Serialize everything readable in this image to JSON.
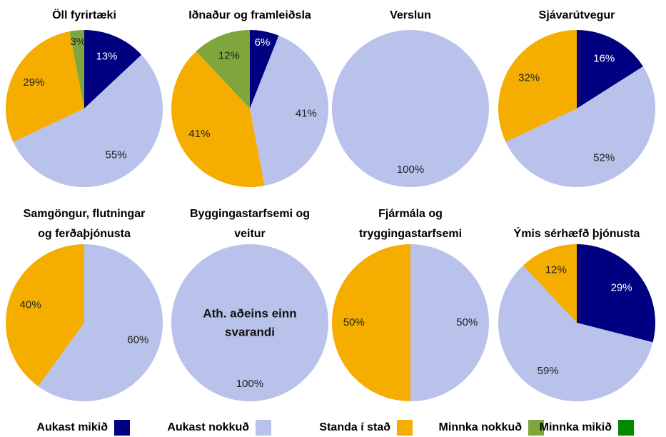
{
  "legend": {
    "categories": [
      "Aukast mikið",
      "Aukast nokkuð",
      "Standa í stað",
      "Minnka nokkuð",
      "Minnka mikið"
    ],
    "colors": [
      "#000080",
      "#b8c2ea",
      "#f5ae00",
      "#7ea63c",
      "#008a00"
    ]
  },
  "chart_data": [
    {
      "type": "pie",
      "title": [
        "Öll fyrirtæki"
      ],
      "values": [
        13,
        55,
        29,
        3,
        null
      ]
    },
    {
      "type": "pie",
      "title": [
        "Iðnaður og framleiðsla"
      ],
      "values": [
        6,
        41,
        41,
        12,
        null
      ]
    },
    {
      "type": "pie",
      "title": [
        "Verslun"
      ],
      "values": [
        null,
        100,
        null,
        null,
        null
      ]
    },
    {
      "type": "pie",
      "title": [
        "Sjávarútvegur"
      ],
      "values": [
        16,
        52,
        32,
        null,
        null
      ]
    },
    {
      "type": "pie",
      "title": [
        "Samgöngur, flutningar",
        "og ferðaþjónusta"
      ],
      "values": [
        null,
        60,
        40,
        null,
        null
      ]
    },
    {
      "type": "pie",
      "title": [
        "Byggingastarfsemi og",
        "veitur"
      ],
      "values": [
        null,
        100,
        null,
        null,
        null
      ],
      "annotation": [
        "Ath. aðeins einn",
        "svarandi"
      ]
    },
    {
      "type": "pie",
      "title": [
        "Fjármála og",
        "tryggingastarfsemi"
      ],
      "values": [
        null,
        50,
        50,
        null,
        null
      ]
    },
    {
      "type": "pie",
      "title": [
        "Ýmis sérhæfð þjónusta"
      ],
      "values": [
        29,
        59,
        12,
        null,
        null
      ]
    }
  ]
}
